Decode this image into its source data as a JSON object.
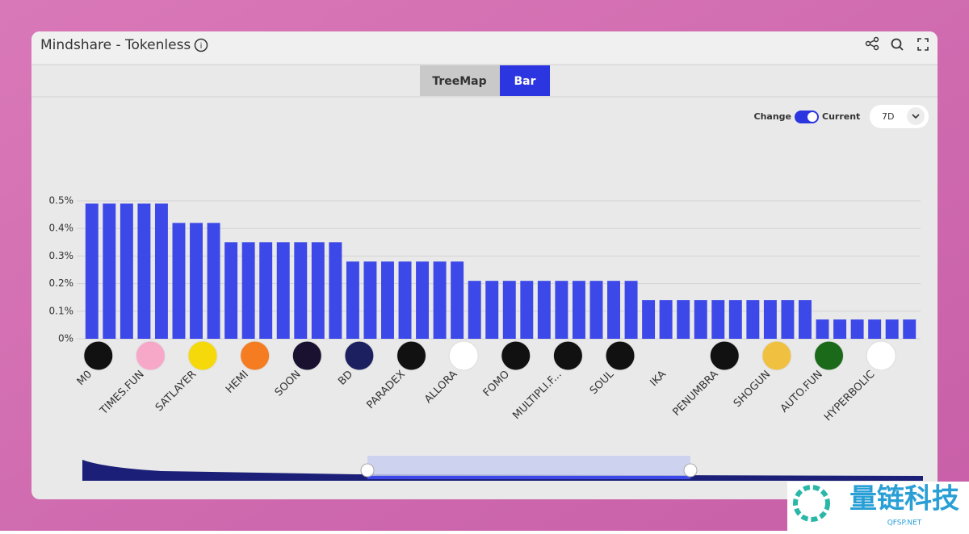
{
  "header": {
    "title": "Mindshare - Tokenless"
  },
  "tabs": [
    "TreeMap",
    "Bar"
  ],
  "controls": {
    "toggle_left": "Change",
    "toggle_right": "Current",
    "period": "7D"
  },
  "watermark": {
    "text": "量链科技",
    "sub": "QFSP.NET"
  },
  "chart_data": {
    "type": "bar",
    "color": "#3d48e8",
    "grid": true,
    "categories": [
      "M0",
      null,
      null,
      "TIMES.FUN",
      null,
      null,
      "SATLAYER",
      null,
      null,
      "HEMI",
      null,
      null,
      "SOON",
      null,
      null,
      "BD",
      null,
      null,
      "PARADEX",
      null,
      null,
      "ALLORA",
      null,
      null,
      "FOMO",
      null,
      null,
      "MULTIPLI.F...",
      null,
      null,
      "SOUL",
      null,
      null,
      "IKA",
      null,
      null,
      "PENUMBRA",
      null,
      null,
      "SHOGUN",
      null,
      null,
      "AUTO.FUN",
      null,
      null,
      "HYPERBOLIC",
      null,
      null
    ],
    "values": [
      0.49,
      0.49,
      0.49,
      0.49,
      0.49,
      0.42,
      0.42,
      0.42,
      0.35,
      0.35,
      0.35,
      0.35,
      0.35,
      0.35,
      0.35,
      0.28,
      0.28,
      0.28,
      0.28,
      0.28,
      0.28,
      0.28,
      0.21,
      0.21,
      0.21,
      0.21,
      0.21,
      0.21,
      0.21,
      0.21,
      0.21,
      0.21,
      0.14,
      0.14,
      0.14,
      0.14,
      0.14,
      0.14,
      0.14,
      0.14,
      0.14,
      0.14,
      0.07,
      0.07,
      0.07,
      0.07,
      0.07,
      0.07
    ],
    "ylim": [
      0,
      0.5
    ],
    "yticks": [
      {
        "value": 0,
        "label": "0%"
      },
      {
        "value": 0.1,
        "label": "0.1%"
      },
      {
        "value": 0.2,
        "label": "0.2%"
      },
      {
        "value": 0.3,
        "label": "0.3%"
      },
      {
        "value": 0.4,
        "label": "0.4%"
      },
      {
        "value": 0.5,
        "label": "0.5%"
      }
    ]
  }
}
